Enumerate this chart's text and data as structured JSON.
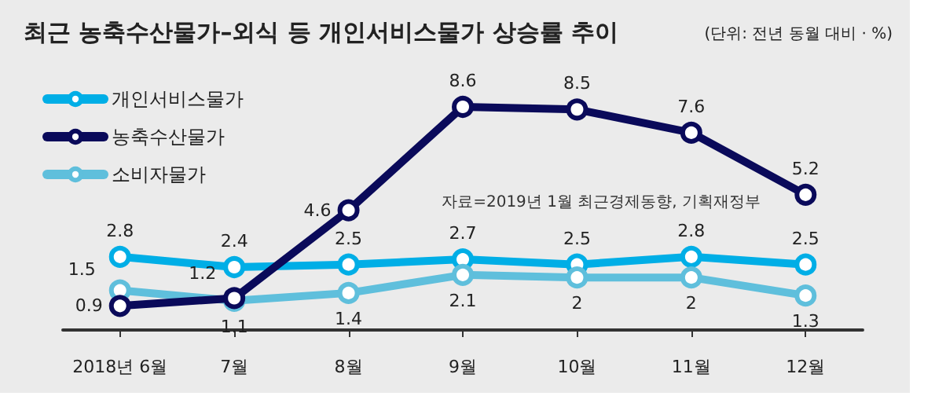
{
  "chart_data": {
    "type": "line",
    "title": "최근 농축수산물가–외식 등 개인서비스물가 상승률 추이",
    "subtitle": "(단위: 전년 동월 대비 · %)",
    "categories": [
      "2018년 6월",
      "7월",
      "8월",
      "9월",
      "10월",
      "11월",
      "12월"
    ],
    "series": [
      {
        "name": "개인서비스물가",
        "color": "#00aee6",
        "values": [
          2.8,
          2.4,
          2.5,
          2.7,
          2.5,
          2.8,
          2.5
        ]
      },
      {
        "name": "농축수산물가",
        "color": "#0a0a5a",
        "values": [
          0.9,
          1.2,
          4.6,
          8.6,
          8.5,
          7.6,
          5.2
        ]
      },
      {
        "name": "소비자물가",
        "color": "#5fbfdc",
        "values": [
          1.5,
          1.1,
          1.4,
          2.1,
          2,
          2,
          1.3
        ]
      }
    ],
    "annotations": [
      "자료=2019년 1월 최근경제동향, 기획재정부"
    ],
    "data_labels": true,
    "legend": "top left",
    "marker": "circle",
    "line_style": "solid",
    "grid": false
  }
}
